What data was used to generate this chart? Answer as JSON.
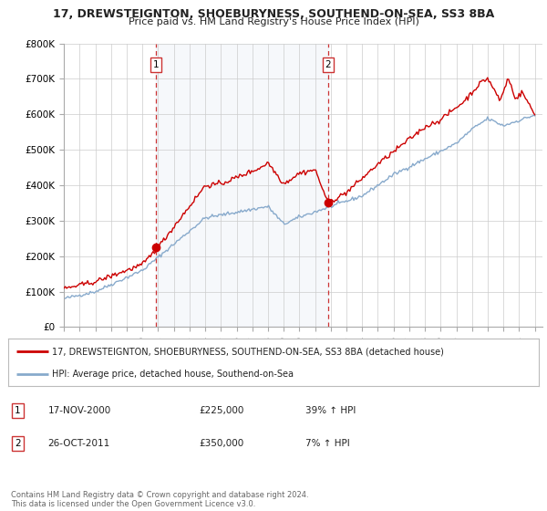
{
  "title": "17, DREWSTEIGNTON, SHOEBURYNESS, SOUTHEND-ON-SEA, SS3 8BA",
  "subtitle": "Price paid vs. HM Land Registry's House Price Index (HPI)",
  "background_color": "#ffffff",
  "plot_bg_color": "#ffffff",
  "grid_color": "#cccccc",
  "line1_color": "#cc0000",
  "line2_color": "#88aacc",
  "line1_label": "17, DREWSTEIGNTON, SHOEBURYNESS, SOUTHEND-ON-SEA, SS3 8BA (detached house)",
  "line2_label": "HPI: Average price, detached house, Southend-on-Sea",
  "marker1_date": 2000.88,
  "marker1_value": 225000,
  "marker1_text": "17-NOV-2000",
  "marker1_price": "£225,000",
  "marker1_hpi": "39% ↑ HPI",
  "marker2_date": 2011.82,
  "marker2_value": 350000,
  "marker2_text": "26-OCT-2011",
  "marker2_price": "£350,000",
  "marker2_hpi": "7% ↑ HPI",
  "ylim": [
    0,
    800000
  ],
  "xlim_start": 1995.0,
  "xlim_end": 2025.5,
  "yticks": [
    0,
    100000,
    200000,
    300000,
    400000,
    500000,
    600000,
    700000,
    800000
  ],
  "ytick_labels": [
    "£0",
    "£100K",
    "£200K",
    "£300K",
    "£400K",
    "£500K",
    "£600K",
    "£700K",
    "£800K"
  ],
  "xticks": [
    1995,
    1996,
    1997,
    1998,
    1999,
    2000,
    2001,
    2002,
    2003,
    2004,
    2005,
    2006,
    2007,
    2008,
    2009,
    2010,
    2011,
    2012,
    2013,
    2014,
    2015,
    2016,
    2017,
    2018,
    2019,
    2020,
    2021,
    2022,
    2023,
    2024,
    2025
  ],
  "footer": "Contains HM Land Registry data © Crown copyright and database right 2024.\nThis data is licensed under the Open Government Licence v3.0.",
  "shaded_region_alpha": 0.1,
  "shaded_color": "#aabbdd"
}
